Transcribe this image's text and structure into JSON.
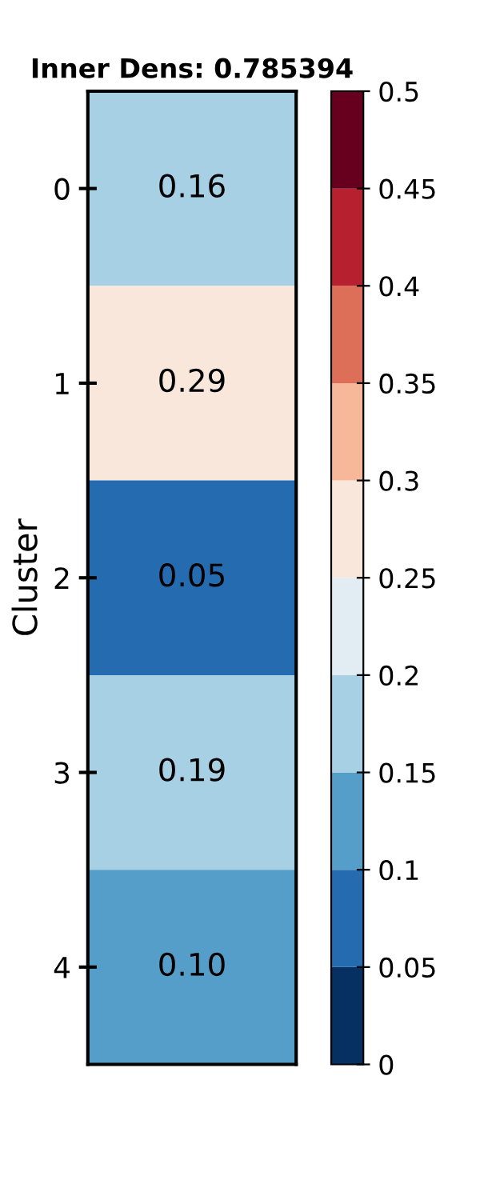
{
  "chart_data": {
    "type": "heatmap",
    "title": "Inner Dens: 0.785394",
    "ylabel": "Cluster",
    "categories": [
      null
    ],
    "y_categories": [
      "0",
      "1",
      "2",
      "3",
      "4"
    ],
    "cells": [
      [
        0.16
      ],
      [
        0.29
      ],
      [
        0.05
      ],
      [
        0.19
      ],
      [
        0.1
      ]
    ],
    "cell_labels": [
      [
        "0.16"
      ],
      [
        "0.29"
      ],
      [
        "0.05"
      ],
      [
        "0.19"
      ],
      [
        "0.10"
      ]
    ],
    "clim": [
      0,
      0.5
    ],
    "cticks": [
      0,
      0.05,
      0.1,
      0.15,
      0.2,
      0.25,
      0.3,
      0.35,
      0.4,
      0.45,
      0.5
    ]
  }
}
